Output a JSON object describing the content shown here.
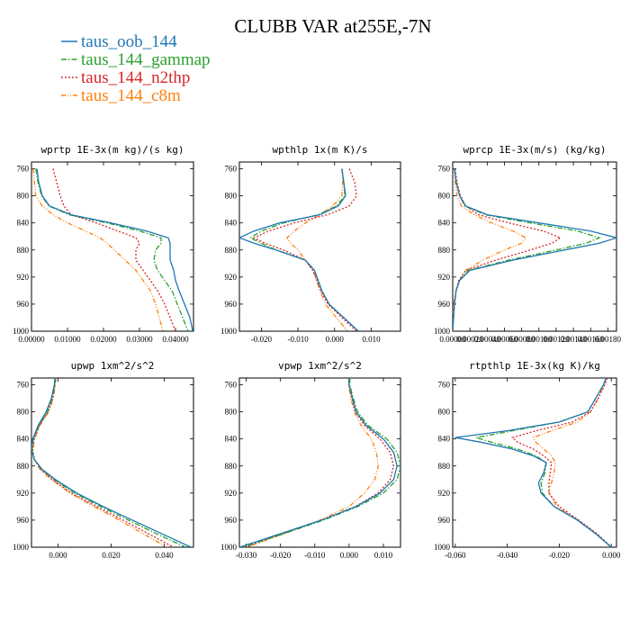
{
  "figure": {
    "title": "CLUBB VAR at255E,-7N"
  },
  "legend": [
    {
      "name": "taus_oob_144",
      "color": "#1f77b4",
      "dash": "solid"
    },
    {
      "name": "taus_144_gammap",
      "color": "#2ca02c",
      "dash": "dashdot"
    },
    {
      "name": "taus_144_n2thp",
      "color": "#d62728",
      "dash": "dot"
    },
    {
      "name": "taus_144_c8m",
      "color": "#ff7f0e",
      "dash": "dashdot2"
    }
  ],
  "chart_data": [
    {
      "type": "line",
      "title": "wprtp  1E-3x(m kg)/(s kg)",
      "xlim": [
        0.0,
        0.045
      ],
      "ylim": [
        1000,
        750
      ],
      "xticks": [
        "0.00000",
        "0.01000",
        "0.02000",
        "0.03000",
        "0.04000"
      ],
      "xtick_values": [
        0.0,
        0.01,
        0.02,
        0.03,
        0.04
      ],
      "yticks": [
        "760",
        "800",
        "840",
        "880",
        "920",
        "960",
        "1000"
      ],
      "ytick_values": [
        760,
        800,
        840,
        880,
        920,
        960,
        1000
      ],
      "y": [
        760,
        780,
        800,
        815,
        828,
        840,
        852,
        862,
        870,
        880,
        895,
        910,
        925,
        940,
        960,
        980,
        1000
      ],
      "series": [
        {
          "name": "taus_oob_144",
          "values": [
            0.0015,
            0.002,
            0.003,
            0.005,
            0.011,
            0.022,
            0.032,
            0.038,
            0.0385,
            0.0385,
            0.0385,
            0.0395,
            0.04,
            0.041,
            0.0425,
            0.044,
            0.0448
          ]
        },
        {
          "name": "taus_144_gammap",
          "values": [
            0.0012,
            0.0018,
            0.0028,
            0.0048,
            0.0105,
            0.021,
            0.03,
            0.036,
            0.036,
            0.0345,
            0.034,
            0.035,
            0.037,
            0.039,
            0.0405,
            0.042,
            0.0435
          ]
        },
        {
          "name": "taus_144_n2thp",
          "values": [
            0.006,
            0.007,
            0.008,
            0.009,
            0.011,
            0.018,
            0.024,
            0.029,
            0.03,
            0.029,
            0.029,
            0.031,
            0.033,
            0.035,
            0.037,
            0.0385,
            0.04
          ]
        },
        {
          "name": "taus_144_c8m",
          "values": [
            0.0005,
            0.0008,
            0.0012,
            0.003,
            0.006,
            0.01,
            0.015,
            0.019,
            0.021,
            0.023,
            0.026,
            0.029,
            0.031,
            0.033,
            0.0345,
            0.0355,
            0.0365
          ]
        }
      ]
    },
    {
      "type": "line",
      "title": "wpthlp  1x(m K)/s",
      "xlim": [
        -0.026,
        0.018
      ],
      "ylim": [
        1000,
        750
      ],
      "xticks": [
        "-0.020",
        "-0.010",
        "0.000",
        "0.010"
      ],
      "xtick_values": [
        -0.02,
        -0.01,
        0.0,
        0.01
      ],
      "yticks": [
        "760",
        "800",
        "840",
        "880",
        "920",
        "960",
        "1000"
      ],
      "ytick_values": [
        760,
        800,
        840,
        880,
        920,
        960,
        1000
      ],
      "y": [
        760,
        780,
        800,
        815,
        828,
        840,
        852,
        862,
        870,
        880,
        895,
        910,
        925,
        940,
        960,
        980,
        1000
      ],
      "series": [
        {
          "name": "taus_oob_144",
          "values": [
            0.002,
            0.0025,
            0.003,
            0.001,
            -0.004,
            -0.015,
            -0.022,
            -0.026,
            -0.022,
            -0.016,
            -0.008,
            -0.0055,
            -0.0045,
            -0.0035,
            -0.0015,
            0.0025,
            0.0065
          ]
        },
        {
          "name": "taus_144_gammap",
          "values": [
            0.002,
            0.0025,
            0.0028,
            0.0005,
            -0.0045,
            -0.014,
            -0.02,
            -0.023,
            -0.02,
            -0.016,
            -0.008,
            -0.0055,
            -0.0045,
            -0.0035,
            -0.0015,
            0.0025,
            0.0065
          ]
        },
        {
          "name": "taus_144_n2thp",
          "values": [
            0.004,
            0.0055,
            0.006,
            0.004,
            -0.002,
            -0.011,
            -0.018,
            -0.022,
            -0.019,
            -0.014,
            -0.008,
            -0.006,
            -0.0048,
            -0.0038,
            -0.0018,
            0.002,
            0.006
          ]
        },
        {
          "name": "taus_144_c8m",
          "values": [
            0.002,
            0.0022,
            0.002,
            -0.0005,
            -0.004,
            -0.008,
            -0.011,
            -0.013,
            -0.012,
            -0.01,
            -0.008,
            -0.0058,
            -0.005,
            -0.004,
            -0.0025,
            0.0005,
            0.0035
          ]
        }
      ]
    },
    {
      "type": "line",
      "title": "wprcp  1E-3x(m/s) (kg/kg)",
      "xlim": [
        0.0,
        0.0019
      ],
      "ylim": [
        1000,
        750
      ],
      "xticks": [
        "0.00000",
        "0.00020",
        "0.00040",
        "0.00060",
        "0.00080",
        "0.00100",
        "0.00120",
        "0.00140",
        "0.00160",
        "0.00180"
      ],
      "xtick_values": [
        0.0,
        0.0002,
        0.0004,
        0.0006,
        0.0008,
        0.001,
        0.0012,
        0.0014,
        0.0016,
        0.0018
      ],
      "yticks": [
        "760",
        "800",
        "840",
        "880",
        "920",
        "960",
        "1000"
      ],
      "ytick_values": [
        760,
        800,
        840,
        880,
        920,
        960,
        1000
      ],
      "y": [
        760,
        780,
        800,
        815,
        828,
        840,
        852,
        862,
        870,
        880,
        895,
        910,
        925,
        940,
        960,
        980,
        1000
      ],
      "series": [
        {
          "name": "taus_oob_144",
          "values": [
            2e-05,
            4e-05,
            8e-05,
            0.00015,
            0.0004,
            0.001,
            0.0016,
            0.0019,
            0.0017,
            0.0013,
            0.0007,
            0.0002,
            8e-05,
            4e-05,
            2e-05,
            1e-05,
            0.0
          ]
        },
        {
          "name": "taus_144_gammap",
          "values": [
            2e-05,
            4e-05,
            8e-05,
            0.00014,
            0.00038,
            0.0009,
            0.00145,
            0.0017,
            0.00155,
            0.0012,
            0.00065,
            0.00018,
            8e-05,
            4e-05,
            2e-05,
            1e-05,
            0.0
          ]
        },
        {
          "name": "taus_144_n2thp",
          "values": [
            3e-05,
            5e-05,
            9e-05,
            0.00015,
            0.0003,
            0.00065,
            0.00105,
            0.00125,
            0.00115,
            0.0009,
            0.0005,
            0.00015,
            7e-05,
            4e-05,
            2e-05,
            1e-05,
            0.0
          ]
        },
        {
          "name": "taus_144_c8m",
          "values": [
            2e-05,
            3e-05,
            5e-05,
            0.0001,
            0.00025,
            0.00045,
            0.0007,
            0.00085,
            0.0008,
            0.0006,
            0.00035,
            0.00015,
            8e-05,
            4e-05,
            1e-05,
            0.0,
            0.0
          ]
        }
      ]
    },
    {
      "type": "line",
      "title": "upwp  1xm^2/s^2",
      "xlim": [
        -0.01,
        0.051
      ],
      "ylim": [
        1000,
        750
      ],
      "xticks": [
        "0.000",
        "0.020",
        "0.040"
      ],
      "xtick_values": [
        0.0,
        0.02,
        0.04
      ],
      "yticks": [
        "760",
        "800",
        "840",
        "880",
        "920",
        "960",
        "1000"
      ],
      "ytick_values": [
        760,
        800,
        840,
        880,
        920,
        960,
        1000
      ],
      "y": [
        750,
        760,
        780,
        800,
        820,
        840,
        855,
        870,
        885,
        900,
        920,
        940,
        960,
        980,
        1000
      ],
      "series": [
        {
          "name": "taus_oob_144",
          "values": [
            -0.0012,
            -0.0014,
            -0.0025,
            -0.0045,
            -0.0075,
            -0.0095,
            -0.01,
            -0.009,
            -0.006,
            -0.001,
            0.007,
            0.017,
            0.028,
            0.039,
            0.05
          ]
        },
        {
          "name": "taus_144_gammap",
          "values": [
            -0.001,
            -0.0012,
            -0.0022,
            -0.004,
            -0.0072,
            -0.0093,
            -0.0098,
            -0.009,
            -0.0062,
            -0.0015,
            0.0062,
            0.016,
            0.0265,
            0.037,
            0.048
          ]
        },
        {
          "name": "taus_144_n2thp",
          "values": [
            -0.001,
            -0.0012,
            -0.002,
            -0.0038,
            -0.007,
            -0.009,
            -0.0096,
            -0.009,
            -0.0065,
            -0.0022,
            0.005,
            0.0145,
            0.0245,
            0.034,
            0.0435
          ]
        },
        {
          "name": "taus_144_c8m",
          "values": [
            -0.0008,
            -0.001,
            -0.0018,
            -0.0035,
            -0.0068,
            -0.0088,
            -0.0095,
            -0.009,
            -0.0068,
            -0.0025,
            0.0045,
            0.0135,
            0.023,
            0.032,
            0.041
          ]
        }
      ]
    },
    {
      "type": "line",
      "title": "vpwp  1xm^2/s^2",
      "xlim": [
        -0.032,
        0.015
      ],
      "ylim": [
        1000,
        750
      ],
      "xticks": [
        "-0.030",
        "-0.020",
        "-0.010",
        "0.000",
        "0.010"
      ],
      "xtick_values": [
        -0.03,
        -0.02,
        -0.01,
        0.0,
        0.01
      ],
      "yticks": [
        "760",
        "800",
        "840",
        "880",
        "920",
        "960",
        "1000"
      ],
      "ytick_values": [
        760,
        800,
        840,
        880,
        920,
        960,
        1000
      ],
      "y": [
        750,
        760,
        780,
        800,
        820,
        840,
        860,
        880,
        900,
        920,
        940,
        960,
        980,
        1000
      ],
      "series": [
        {
          "name": "taus_oob_144",
          "values": [
            0.0,
            0.0,
            0.001,
            0.002,
            0.005,
            0.01,
            0.013,
            0.014,
            0.013,
            0.009,
            0.002,
            -0.008,
            -0.02,
            -0.032
          ]
        },
        {
          "name": "taus_144_gammap",
          "values": [
            0.0002,
            0.0002,
            0.0012,
            0.0025,
            0.0055,
            0.011,
            0.014,
            0.015,
            0.014,
            0.01,
            0.0025,
            -0.0075,
            -0.019,
            -0.031
          ]
        },
        {
          "name": "taus_144_n2thp",
          "values": [
            0.0,
            0.0,
            0.0008,
            0.0018,
            0.0045,
            0.009,
            0.012,
            0.013,
            0.012,
            0.0085,
            0.0018,
            -0.008,
            -0.0195,
            -0.03
          ]
        },
        {
          "name": "taus_144_c8m",
          "values": [
            0.0,
            -0.0002,
            0.0005,
            0.0015,
            0.0035,
            0.0065,
            0.008,
            0.0085,
            0.0075,
            0.0045,
            0.0,
            -0.0085,
            -0.019,
            -0.03
          ]
        }
      ]
    },
    {
      "type": "line",
      "title": "rtpthlp  1E-3x(kg K)/kg",
      "xlim": [
        -0.061,
        0.002
      ],
      "ylim": [
        1000,
        750
      ],
      "xticks": [
        "-0.060",
        "-0.040",
        "-0.020",
        "0.000"
      ],
      "xtick_values": [
        -0.06,
        -0.04,
        -0.02,
        0.0
      ],
      "yticks": [
        "760",
        "800",
        "840",
        "880",
        "920",
        "960",
        "1000"
      ],
      "ytick_values": [
        760,
        800,
        840,
        880,
        920,
        960,
        1000
      ],
      "y": [
        750,
        760,
        780,
        800,
        815,
        828,
        838,
        845,
        855,
        865,
        875,
        890,
        905,
        920,
        940,
        960,
        980,
        1000
      ],
      "series": [
        {
          "name": "taus_oob_144",
          "values": [
            -0.002,
            -0.003,
            -0.006,
            -0.009,
            -0.02,
            -0.04,
            -0.06,
            -0.05,
            -0.038,
            -0.03,
            -0.025,
            -0.026,
            -0.028,
            -0.027,
            -0.022,
            -0.013,
            -0.006,
            0.0
          ]
        },
        {
          "name": "taus_144_gammap",
          "values": [
            -0.002,
            -0.003,
            -0.006,
            -0.009,
            -0.02,
            -0.038,
            -0.052,
            -0.046,
            -0.036,
            -0.029,
            -0.025,
            -0.0255,
            -0.027,
            -0.0265,
            -0.022,
            -0.013,
            -0.006,
            0.0
          ]
        },
        {
          "name": "taus_144_n2thp",
          "values": [
            -0.0015,
            -0.0025,
            -0.005,
            -0.008,
            -0.015,
            -0.029,
            -0.038,
            -0.036,
            -0.03,
            -0.026,
            -0.023,
            -0.0235,
            -0.024,
            -0.024,
            -0.02,
            -0.0125,
            -0.0055,
            0.0
          ]
        },
        {
          "name": "taus_144_c8m",
          "values": [
            -0.002,
            -0.003,
            -0.005,
            -0.008,
            -0.013,
            -0.023,
            -0.03,
            -0.029,
            -0.026,
            -0.023,
            -0.0215,
            -0.022,
            -0.023,
            -0.024,
            -0.021,
            -0.013,
            -0.006,
            0.0
          ]
        }
      ]
    }
  ]
}
